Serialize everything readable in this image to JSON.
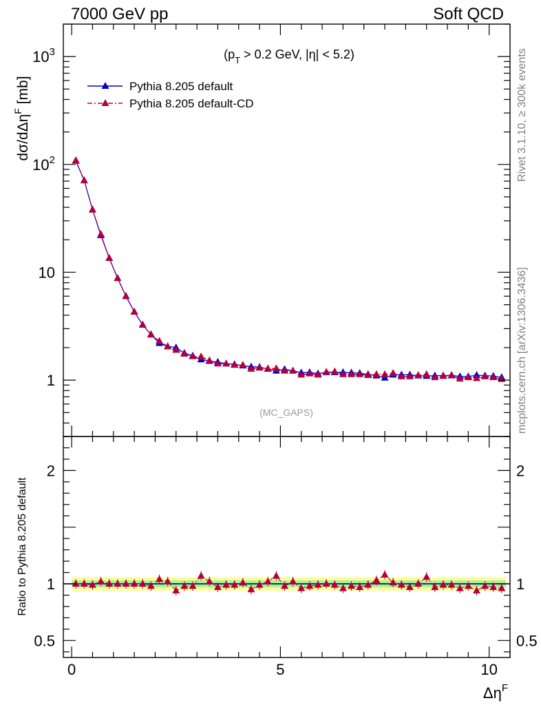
{
  "header": {
    "energy_label": "7000 GeV pp",
    "process_label": "Soft QCD"
  },
  "side_labels": {
    "rivet": "Rivet 3.1.10, ≥ 300k events",
    "mcplots": "mcplots.cern.ch [arXiv:1306.3436]"
  },
  "main_plot": {
    "cuts_label": "(p_T > 0.2 GeV, |η| < 5.2)",
    "ylabel": "dσ/dΔη^F [mb]",
    "analysis_tag": "(MC_GAPS)"
  },
  "ratio_plot": {
    "ylabel": "Ratio to Pythia 8.205 default"
  },
  "colors": {
    "default": "#0000cc",
    "cd": "#b3003c",
    "band_inner": "#a8f0a0",
    "band_outer": "#ffff99"
  },
  "chart_data": [
    {
      "type": "line",
      "title": "",
      "xlabel": "Δη^F",
      "ylabel": "dσ/dΔη^F [mb]",
      "xlim": [
        -0.2,
        10.5
      ],
      "ylim": [
        0.3,
        2000
      ],
      "yscale": "log",
      "x_ticks": [
        "0",
        "5",
        "10"
      ],
      "y_ticks": [
        "1",
        "10",
        "10^2",
        "10^3"
      ],
      "legend_position": "top-left",
      "x": [
        0.1,
        0.3,
        0.5,
        0.7,
        0.9,
        1.1,
        1.3,
        1.5,
        1.7,
        1.9,
        2.1,
        2.3,
        2.5,
        2.7,
        2.9,
        3.1,
        3.3,
        3.5,
        3.7,
        3.9,
        4.1,
        4.3,
        4.5,
        4.7,
        4.9,
        5.1,
        5.3,
        5.5,
        5.7,
        5.9,
        6.1,
        6.3,
        6.5,
        6.7,
        6.9,
        7.1,
        7.3,
        7.5,
        7.7,
        7.9,
        8.1,
        8.3,
        8.5,
        8.7,
        8.9,
        9.1,
        9.3,
        9.5,
        9.7,
        9.9,
        10.1,
        10.3
      ],
      "series": [
        {
          "name": "Pythia 8.205 default",
          "line_style": "solid",
          "values": [
            108,
            71,
            38,
            22,
            13.5,
            8.8,
            6.0,
            4.3,
            3.25,
            2.65,
            2.2,
            2.05,
            2.0,
            1.78,
            1.68,
            1.55,
            1.5,
            1.47,
            1.42,
            1.4,
            1.36,
            1.33,
            1.32,
            1.27,
            1.22,
            1.26,
            1.22,
            1.17,
            1.18,
            1.15,
            1.18,
            1.18,
            1.18,
            1.17,
            1.16,
            1.13,
            1.1,
            1.05,
            1.12,
            1.12,
            1.12,
            1.1,
            1.09,
            1.1,
            1.1,
            1.11,
            1.08,
            1.08,
            1.11,
            1.1,
            1.09,
            1.06
          ]
        },
        {
          "name": "Pythia 8.205 default-CD",
          "line_style": "dash-dot",
          "values": [
            109,
            71,
            38,
            22.5,
            13.5,
            8.8,
            6.0,
            4.3,
            3.27,
            2.63,
            2.3,
            2.05,
            1.9,
            1.75,
            1.66,
            1.65,
            1.52,
            1.42,
            1.42,
            1.38,
            1.38,
            1.27,
            1.3,
            1.28,
            1.28,
            1.22,
            1.22,
            1.12,
            1.15,
            1.12,
            1.19,
            1.2,
            1.13,
            1.13,
            1.13,
            1.11,
            1.13,
            1.13,
            1.16,
            1.08,
            1.08,
            1.11,
            1.13,
            1.06,
            1.09,
            1.1,
            1.03,
            1.06,
            1.04,
            1.08,
            1.06,
            1.02
          ]
        }
      ]
    },
    {
      "type": "scatter",
      "title": "",
      "xlabel": "Δη^F",
      "ylabel": "Ratio to Pythia 8.205 default",
      "xlim": [
        -0.2,
        10.5
      ],
      "ylim": [
        0.35,
        2.3
      ],
      "x_ticks": [
        "0",
        "5",
        "10"
      ],
      "y_ticks": [
        "0.5",
        "1",
        "2"
      ],
      "reference_line": 1,
      "band_inner": [
        0.97,
        1.03
      ],
      "band_outer": [
        0.94,
        1.06
      ],
      "x": [
        0.1,
        0.3,
        0.5,
        0.7,
        0.9,
        1.1,
        1.3,
        1.5,
        1.7,
        1.9,
        2.1,
        2.3,
        2.5,
        2.7,
        2.9,
        3.1,
        3.3,
        3.5,
        3.7,
        3.9,
        4.1,
        4.3,
        4.5,
        4.7,
        4.9,
        5.1,
        5.3,
        5.5,
        5.7,
        5.9,
        6.1,
        6.3,
        6.5,
        6.7,
        6.9,
        7.1,
        7.3,
        7.5,
        7.7,
        7.9,
        8.1,
        8.3,
        8.5,
        8.7,
        8.9,
        9.1,
        9.3,
        9.5,
        9.7,
        9.9,
        10.1,
        10.3
      ],
      "series": [
        {
          "name": "Pythia 8.205 default-CD",
          "values": [
            1.0,
            1.0,
            0.99,
            1.02,
            1.0,
            1.0,
            1.0,
            1.0,
            1.0,
            0.98,
            1.04,
            1.02,
            0.94,
            0.98,
            0.98,
            1.07,
            1.02,
            0.97,
            0.99,
            0.99,
            1.01,
            0.95,
            0.99,
            1.02,
            1.07,
            0.98,
            1.02,
            0.96,
            0.98,
            0.99,
            1.0,
            0.99,
            0.96,
            0.98,
            0.97,
            0.99,
            1.03,
            1.08,
            1.01,
            0.99,
            0.97,
            1.0,
            1.06,
            0.97,
            0.99,
            0.99,
            0.96,
            0.98,
            0.94,
            0.98,
            0.97,
            0.96
          ]
        }
      ]
    }
  ]
}
